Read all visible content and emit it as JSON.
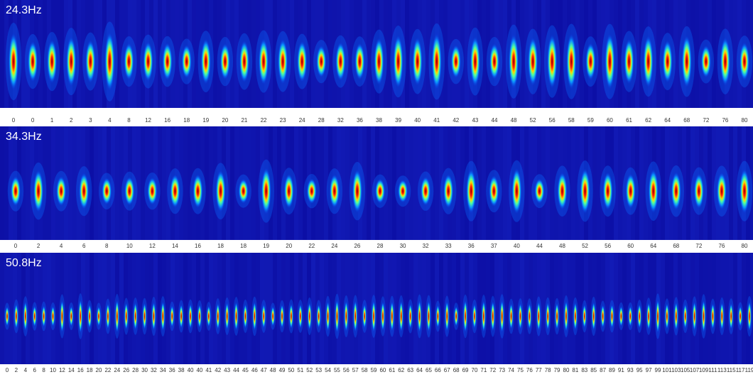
{
  "panels": [
    {
      "title": "24.3Hz",
      "labels": [
        "0",
        "0",
        "1",
        "2",
        "3",
        "4",
        "8",
        "12",
        "16",
        "18",
        "19",
        "20",
        "21",
        "22",
        "23",
        "24",
        "28",
        "32",
        "36",
        "38",
        "39",
        "40",
        "41",
        "42",
        "43",
        "44",
        "48",
        "52",
        "56",
        "58",
        "59",
        "60",
        "61",
        "62",
        "64",
        "68",
        "72",
        "76",
        "80"
      ]
    },
    {
      "title": "34.3Hz",
      "labels": [
        "0",
        "2",
        "4",
        "6",
        "8",
        "10",
        "12",
        "14",
        "16",
        "18",
        "18",
        "19",
        "20",
        "22",
        "24",
        "26",
        "28",
        "30",
        "32",
        "33",
        "36",
        "37",
        "40",
        "44",
        "48",
        "52",
        "56",
        "60",
        "64",
        "68",
        "72",
        "76",
        "80"
      ]
    },
    {
      "title": "50.8Hz",
      "labels": [
        "0",
        "2",
        "4",
        "6",
        "8",
        "10",
        "12",
        "14",
        "16",
        "18",
        "20",
        "22",
        "24",
        "26",
        "28",
        "30",
        "32",
        "34",
        "36",
        "38",
        "40",
        "40",
        "41",
        "42",
        "43",
        "44",
        "45",
        "46",
        "47",
        "48",
        "49",
        "50",
        "51",
        "52",
        "53",
        "54",
        "55",
        "56",
        "57",
        "58",
        "59",
        "60",
        "61",
        "62",
        "63",
        "64",
        "65",
        "66",
        "67",
        "68",
        "69",
        "70",
        "71",
        "72",
        "73",
        "74",
        "75",
        "76",
        "77",
        "78",
        "79",
        "80",
        "81",
        "83",
        "85",
        "87",
        "89",
        "91",
        "93",
        "95",
        "97",
        "99",
        "101",
        "103",
        "105",
        "107",
        "109",
        "111",
        "113",
        "115",
        "117",
        "119"
      ]
    }
  ]
}
